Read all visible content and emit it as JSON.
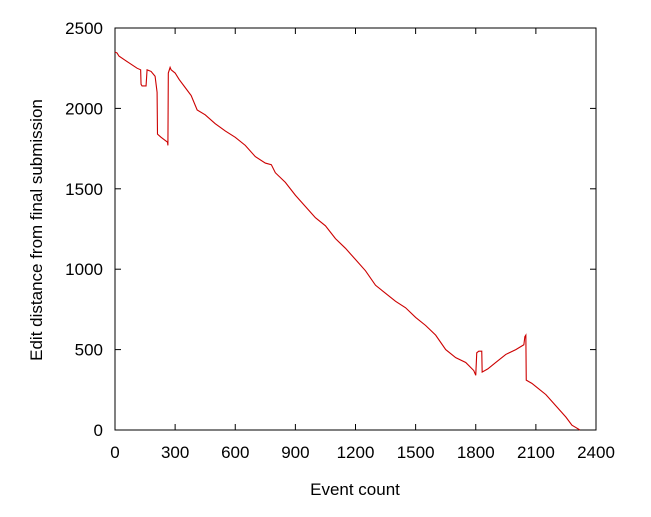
{
  "chart_data": {
    "type": "line",
    "title": "",
    "xlabel": "Event count",
    "ylabel": "Edit distance from final submission",
    "xlim": [
      0,
      2400
    ],
    "ylim": [
      0,
      2500
    ],
    "xticks": [
      0,
      300,
      600,
      900,
      1200,
      1500,
      1800,
      2100,
      2400
    ],
    "yticks": [
      0,
      500,
      1000,
      1500,
      2000,
      2500
    ],
    "grid": false,
    "legend": "none",
    "series": [
      {
        "color": "#cc0000",
        "points": [
          [
            0,
            2350
          ],
          [
            10,
            2345
          ],
          [
            20,
            2325
          ],
          [
            50,
            2300
          ],
          [
            80,
            2275
          ],
          [
            110,
            2250
          ],
          [
            128,
            2240
          ],
          [
            130,
            2150
          ],
          [
            135,
            2140
          ],
          [
            155,
            2140
          ],
          [
            160,
            2240
          ],
          [
            180,
            2230
          ],
          [
            200,
            2200
          ],
          [
            210,
            2100
          ],
          [
            212,
            1840
          ],
          [
            230,
            1820
          ],
          [
            262,
            1790
          ],
          [
            264,
            1770
          ],
          [
            266,
            2220
          ],
          [
            275,
            2255
          ],
          [
            280,
            2240
          ],
          [
            300,
            2220
          ],
          [
            320,
            2180
          ],
          [
            350,
            2130
          ],
          [
            380,
            2080
          ],
          [
            410,
            1990
          ],
          [
            450,
            1960
          ],
          [
            500,
            1905
          ],
          [
            550,
            1860
          ],
          [
            600,
            1820
          ],
          [
            650,
            1770
          ],
          [
            700,
            1700
          ],
          [
            750,
            1660
          ],
          [
            780,
            1650
          ],
          [
            800,
            1600
          ],
          [
            850,
            1540
          ],
          [
            900,
            1460
          ],
          [
            950,
            1390
          ],
          [
            1000,
            1320
          ],
          [
            1050,
            1270
          ],
          [
            1100,
            1190
          ],
          [
            1150,
            1130
          ],
          [
            1200,
            1060
          ],
          [
            1250,
            990
          ],
          [
            1300,
            900
          ],
          [
            1350,
            850
          ],
          [
            1400,
            800
          ],
          [
            1450,
            760
          ],
          [
            1500,
            700
          ],
          [
            1550,
            650
          ],
          [
            1600,
            590
          ],
          [
            1650,
            500
          ],
          [
            1700,
            450
          ],
          [
            1750,
            420
          ],
          [
            1790,
            370
          ],
          [
            1800,
            340
          ],
          [
            1805,
            480
          ],
          [
            1815,
            490
          ],
          [
            1830,
            490
          ],
          [
            1832,
            360
          ],
          [
            1860,
            380
          ],
          [
            1900,
            420
          ],
          [
            1950,
            470
          ],
          [
            2000,
            500
          ],
          [
            2040,
            530
          ],
          [
            2045,
            580
          ],
          [
            2050,
            590
          ],
          [
            2052,
            310
          ],
          [
            2080,
            290
          ],
          [
            2100,
            270
          ],
          [
            2150,
            220
          ],
          [
            2200,
            150
          ],
          [
            2250,
            80
          ],
          [
            2280,
            30
          ],
          [
            2300,
            15
          ],
          [
            2320,
            0
          ]
        ]
      }
    ]
  }
}
